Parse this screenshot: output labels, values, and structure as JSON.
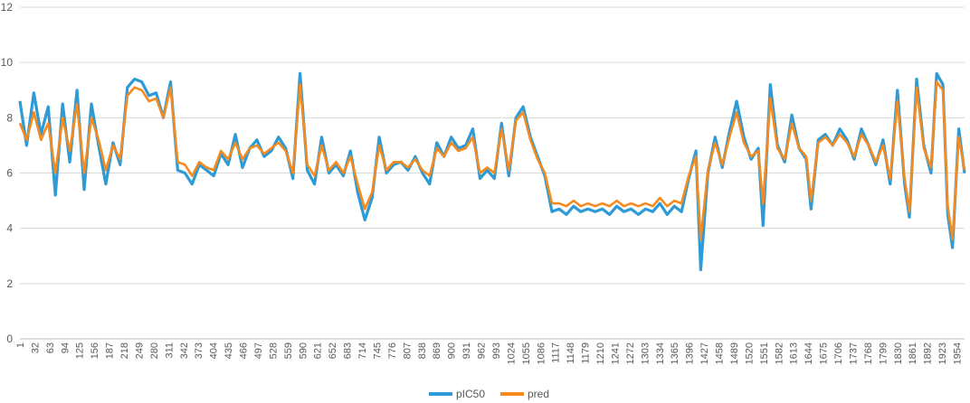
{
  "chart_data": {
    "type": "line",
    "ylim": [
      0,
      12
    ],
    "yticks": [
      "0",
      "2",
      "4",
      "6",
      "8",
      "10",
      "12"
    ],
    "x_range": [
      1,
      1970
    ],
    "xtick_labels": [
      "1",
      "32",
      "63",
      "94",
      "125",
      "156",
      "187",
      "218",
      "249",
      "280",
      "311",
      "342",
      "373",
      "404",
      "435",
      "466",
      "497",
      "528",
      "559",
      "590",
      "621",
      "652",
      "683",
      "714",
      "745",
      "776",
      "807",
      "838",
      "869",
      "900",
      "931",
      "962",
      "993",
      "1024",
      "1055",
      "1086",
      "1117",
      "1148",
      "1179",
      "1210",
      "1241",
      "1272",
      "1303",
      "1334",
      "1365",
      "1396",
      "1427",
      "1458",
      "1489",
      "1520",
      "1551",
      "1582",
      "1613",
      "1644",
      "1675",
      "1706",
      "1737",
      "1768",
      "1799",
      "1830",
      "1861",
      "1892",
      "1923",
      "1954"
    ],
    "grid": true,
    "legend_position": "bottom",
    "series": [
      {
        "name": "pIC50",
        "color": "#2e9bd6",
        "values": [
          [
            1,
            8.6
          ],
          [
            15,
            7.0
          ],
          [
            30,
            8.9
          ],
          [
            45,
            7.4
          ],
          [
            60,
            8.4
          ],
          [
            75,
            5.2
          ],
          [
            90,
            8.5
          ],
          [
            105,
            6.4
          ],
          [
            120,
            9.0
          ],
          [
            135,
            5.4
          ],
          [
            150,
            8.5
          ],
          [
            165,
            7.0
          ],
          [
            180,
            5.6
          ],
          [
            195,
            7.1
          ],
          [
            210,
            6.3
          ],
          [
            225,
            9.1
          ],
          [
            240,
            9.4
          ],
          [
            255,
            9.3
          ],
          [
            270,
            8.8
          ],
          [
            285,
            8.9
          ],
          [
            300,
            8.0
          ],
          [
            315,
            9.3
          ],
          [
            330,
            6.1
          ],
          [
            345,
            6.0
          ],
          [
            360,
            5.6
          ],
          [
            375,
            6.3
          ],
          [
            390,
            6.1
          ],
          [
            405,
            5.9
          ],
          [
            420,
            6.7
          ],
          [
            435,
            6.3
          ],
          [
            450,
            7.4
          ],
          [
            465,
            6.2
          ],
          [
            480,
            6.9
          ],
          [
            495,
            7.2
          ],
          [
            510,
            6.6
          ],
          [
            525,
            6.8
          ],
          [
            540,
            7.3
          ],
          [
            555,
            6.9
          ],
          [
            570,
            5.8
          ],
          [
            585,
            9.6
          ],
          [
            600,
            6.1
          ],
          [
            615,
            5.6
          ],
          [
            630,
            7.3
          ],
          [
            645,
            6.0
          ],
          [
            660,
            6.3
          ],
          [
            675,
            5.9
          ],
          [
            690,
            6.8
          ],
          [
            705,
            5.3
          ],
          [
            720,
            4.3
          ],
          [
            735,
            5.1
          ],
          [
            750,
            7.3
          ],
          [
            765,
            6.0
          ],
          [
            780,
            6.3
          ],
          [
            795,
            6.4
          ],
          [
            810,
            6.1
          ],
          [
            825,
            6.6
          ],
          [
            840,
            6.0
          ],
          [
            855,
            5.6
          ],
          [
            870,
            7.1
          ],
          [
            885,
            6.6
          ],
          [
            900,
            7.3
          ],
          [
            915,
            6.9
          ],
          [
            930,
            7.0
          ],
          [
            945,
            7.6
          ],
          [
            960,
            5.8
          ],
          [
            975,
            6.1
          ],
          [
            990,
            5.8
          ],
          [
            1005,
            7.8
          ],
          [
            1020,
            5.9
          ],
          [
            1035,
            8.0
          ],
          [
            1050,
            8.4
          ],
          [
            1065,
            7.3
          ],
          [
            1080,
            6.6
          ],
          [
            1095,
            5.9
          ],
          [
            1110,
            4.6
          ],
          [
            1125,
            4.7
          ],
          [
            1140,
            4.5
          ],
          [
            1155,
            4.8
          ],
          [
            1170,
            4.6
          ],
          [
            1185,
            4.7
          ],
          [
            1200,
            4.6
          ],
          [
            1215,
            4.7
          ],
          [
            1230,
            4.5
          ],
          [
            1245,
            4.8
          ],
          [
            1260,
            4.6
          ],
          [
            1275,
            4.7
          ],
          [
            1290,
            4.5
          ],
          [
            1305,
            4.7
          ],
          [
            1320,
            4.6
          ],
          [
            1335,
            4.9
          ],
          [
            1350,
            4.5
          ],
          [
            1365,
            4.8
          ],
          [
            1380,
            4.6
          ],
          [
            1395,
            5.8
          ],
          [
            1410,
            6.8
          ],
          [
            1420,
            2.5
          ],
          [
            1435,
            6.0
          ],
          [
            1450,
            7.3
          ],
          [
            1465,
            6.2
          ],
          [
            1480,
            7.5
          ],
          [
            1495,
            8.6
          ],
          [
            1510,
            7.3
          ],
          [
            1525,
            6.5
          ],
          [
            1540,
            6.9
          ],
          [
            1550,
            4.1
          ],
          [
            1565,
            9.2
          ],
          [
            1580,
            7.0
          ],
          [
            1595,
            6.4
          ],
          [
            1610,
            8.1
          ],
          [
            1625,
            6.9
          ],
          [
            1640,
            6.5
          ],
          [
            1650,
            4.7
          ],
          [
            1665,
            7.2
          ],
          [
            1680,
            7.4
          ],
          [
            1695,
            7.0
          ],
          [
            1710,
            7.6
          ],
          [
            1725,
            7.2
          ],
          [
            1740,
            6.5
          ],
          [
            1755,
            7.6
          ],
          [
            1770,
            7.0
          ],
          [
            1785,
            6.3
          ],
          [
            1800,
            7.2
          ],
          [
            1815,
            5.6
          ],
          [
            1830,
            9.0
          ],
          [
            1845,
            5.6
          ],
          [
            1855,
            4.4
          ],
          [
            1870,
            9.4
          ],
          [
            1885,
            7.0
          ],
          [
            1900,
            6.0
          ],
          [
            1912,
            9.6
          ],
          [
            1925,
            9.2
          ],
          [
            1935,
            4.5
          ],
          [
            1945,
            3.3
          ],
          [
            1958,
            7.6
          ],
          [
            1970,
            6.0
          ]
        ]
      },
      {
        "name": "pred",
        "color": "#f58a1f",
        "values": [
          [
            1,
            7.8
          ],
          [
            15,
            7.2
          ],
          [
            30,
            8.2
          ],
          [
            45,
            7.2
          ],
          [
            60,
            7.8
          ],
          [
            75,
            6.0
          ],
          [
            90,
            8.0
          ],
          [
            105,
            6.8
          ],
          [
            120,
            8.5
          ],
          [
            135,
            6.0
          ],
          [
            150,
            8.0
          ],
          [
            165,
            7.2
          ],
          [
            180,
            6.1
          ],
          [
            195,
            7.0
          ],
          [
            210,
            6.5
          ],
          [
            225,
            8.8
          ],
          [
            240,
            9.1
          ],
          [
            255,
            9.0
          ],
          [
            270,
            8.6
          ],
          [
            285,
            8.7
          ],
          [
            300,
            8.0
          ],
          [
            315,
            9.1
          ],
          [
            330,
            6.4
          ],
          [
            345,
            6.3
          ],
          [
            360,
            5.9
          ],
          [
            375,
            6.4
          ],
          [
            390,
            6.2
          ],
          [
            405,
            6.1
          ],
          [
            420,
            6.8
          ],
          [
            435,
            6.5
          ],
          [
            450,
            7.1
          ],
          [
            465,
            6.5
          ],
          [
            480,
            6.9
          ],
          [
            495,
            7.0
          ],
          [
            510,
            6.7
          ],
          [
            525,
            6.9
          ],
          [
            540,
            7.1
          ],
          [
            555,
            6.8
          ],
          [
            570,
            6.0
          ],
          [
            585,
            9.2
          ],
          [
            600,
            6.3
          ],
          [
            615,
            5.9
          ],
          [
            630,
            7.0
          ],
          [
            645,
            6.1
          ],
          [
            660,
            6.4
          ],
          [
            675,
            6.0
          ],
          [
            690,
            6.6
          ],
          [
            705,
            5.6
          ],
          [
            720,
            4.7
          ],
          [
            735,
            5.3
          ],
          [
            750,
            7.0
          ],
          [
            765,
            6.1
          ],
          [
            780,
            6.4
          ],
          [
            795,
            6.4
          ],
          [
            810,
            6.2
          ],
          [
            825,
            6.5
          ],
          [
            840,
            6.1
          ],
          [
            855,
            5.9
          ],
          [
            870,
            6.9
          ],
          [
            885,
            6.6
          ],
          [
            900,
            7.1
          ],
          [
            915,
            6.8
          ],
          [
            930,
            6.9
          ],
          [
            945,
            7.3
          ],
          [
            960,
            6.0
          ],
          [
            975,
            6.2
          ],
          [
            990,
            6.0
          ],
          [
            1005,
            7.6
          ],
          [
            1020,
            6.1
          ],
          [
            1035,
            7.9
          ],
          [
            1050,
            8.2
          ],
          [
            1065,
            7.2
          ],
          [
            1080,
            6.5
          ],
          [
            1095,
            6.0
          ],
          [
            1110,
            4.9
          ],
          [
            1125,
            4.9
          ],
          [
            1140,
            4.8
          ],
          [
            1155,
            5.0
          ],
          [
            1170,
            4.8
          ],
          [
            1185,
            4.9
          ],
          [
            1200,
            4.8
          ],
          [
            1215,
            4.9
          ],
          [
            1230,
            4.8
          ],
          [
            1245,
            5.0
          ],
          [
            1260,
            4.8
          ],
          [
            1275,
            4.9
          ],
          [
            1290,
            4.8
          ],
          [
            1305,
            4.9
          ],
          [
            1320,
            4.8
          ],
          [
            1335,
            5.1
          ],
          [
            1350,
            4.8
          ],
          [
            1365,
            5.0
          ],
          [
            1380,
            4.9
          ],
          [
            1395,
            5.9
          ],
          [
            1410,
            6.6
          ],
          [
            1420,
            3.6
          ],
          [
            1435,
            6.1
          ],
          [
            1450,
            7.1
          ],
          [
            1465,
            6.3
          ],
          [
            1480,
            7.3
          ],
          [
            1495,
            8.2
          ],
          [
            1510,
            7.1
          ],
          [
            1525,
            6.6
          ],
          [
            1540,
            6.8
          ],
          [
            1550,
            4.9
          ],
          [
            1565,
            8.7
          ],
          [
            1580,
            6.9
          ],
          [
            1595,
            6.5
          ],
          [
            1610,
            7.8
          ],
          [
            1625,
            6.9
          ],
          [
            1640,
            6.6
          ],
          [
            1650,
            5.0
          ],
          [
            1665,
            7.1
          ],
          [
            1680,
            7.3
          ],
          [
            1695,
            7.0
          ],
          [
            1710,
            7.4
          ],
          [
            1725,
            7.1
          ],
          [
            1740,
            6.6
          ],
          [
            1755,
            7.4
          ],
          [
            1770,
            7.0
          ],
          [
            1785,
            6.4
          ],
          [
            1800,
            7.0
          ],
          [
            1815,
            5.8
          ],
          [
            1830,
            8.6
          ],
          [
            1845,
            5.8
          ],
          [
            1855,
            4.6
          ],
          [
            1870,
            9.1
          ],
          [
            1885,
            6.9
          ],
          [
            1900,
            6.2
          ],
          [
            1912,
            9.3
          ],
          [
            1925,
            9.0
          ],
          [
            1935,
            4.8
          ],
          [
            1945,
            3.6
          ],
          [
            1958,
            7.3
          ],
          [
            1970,
            6.1
          ]
        ]
      }
    ]
  }
}
